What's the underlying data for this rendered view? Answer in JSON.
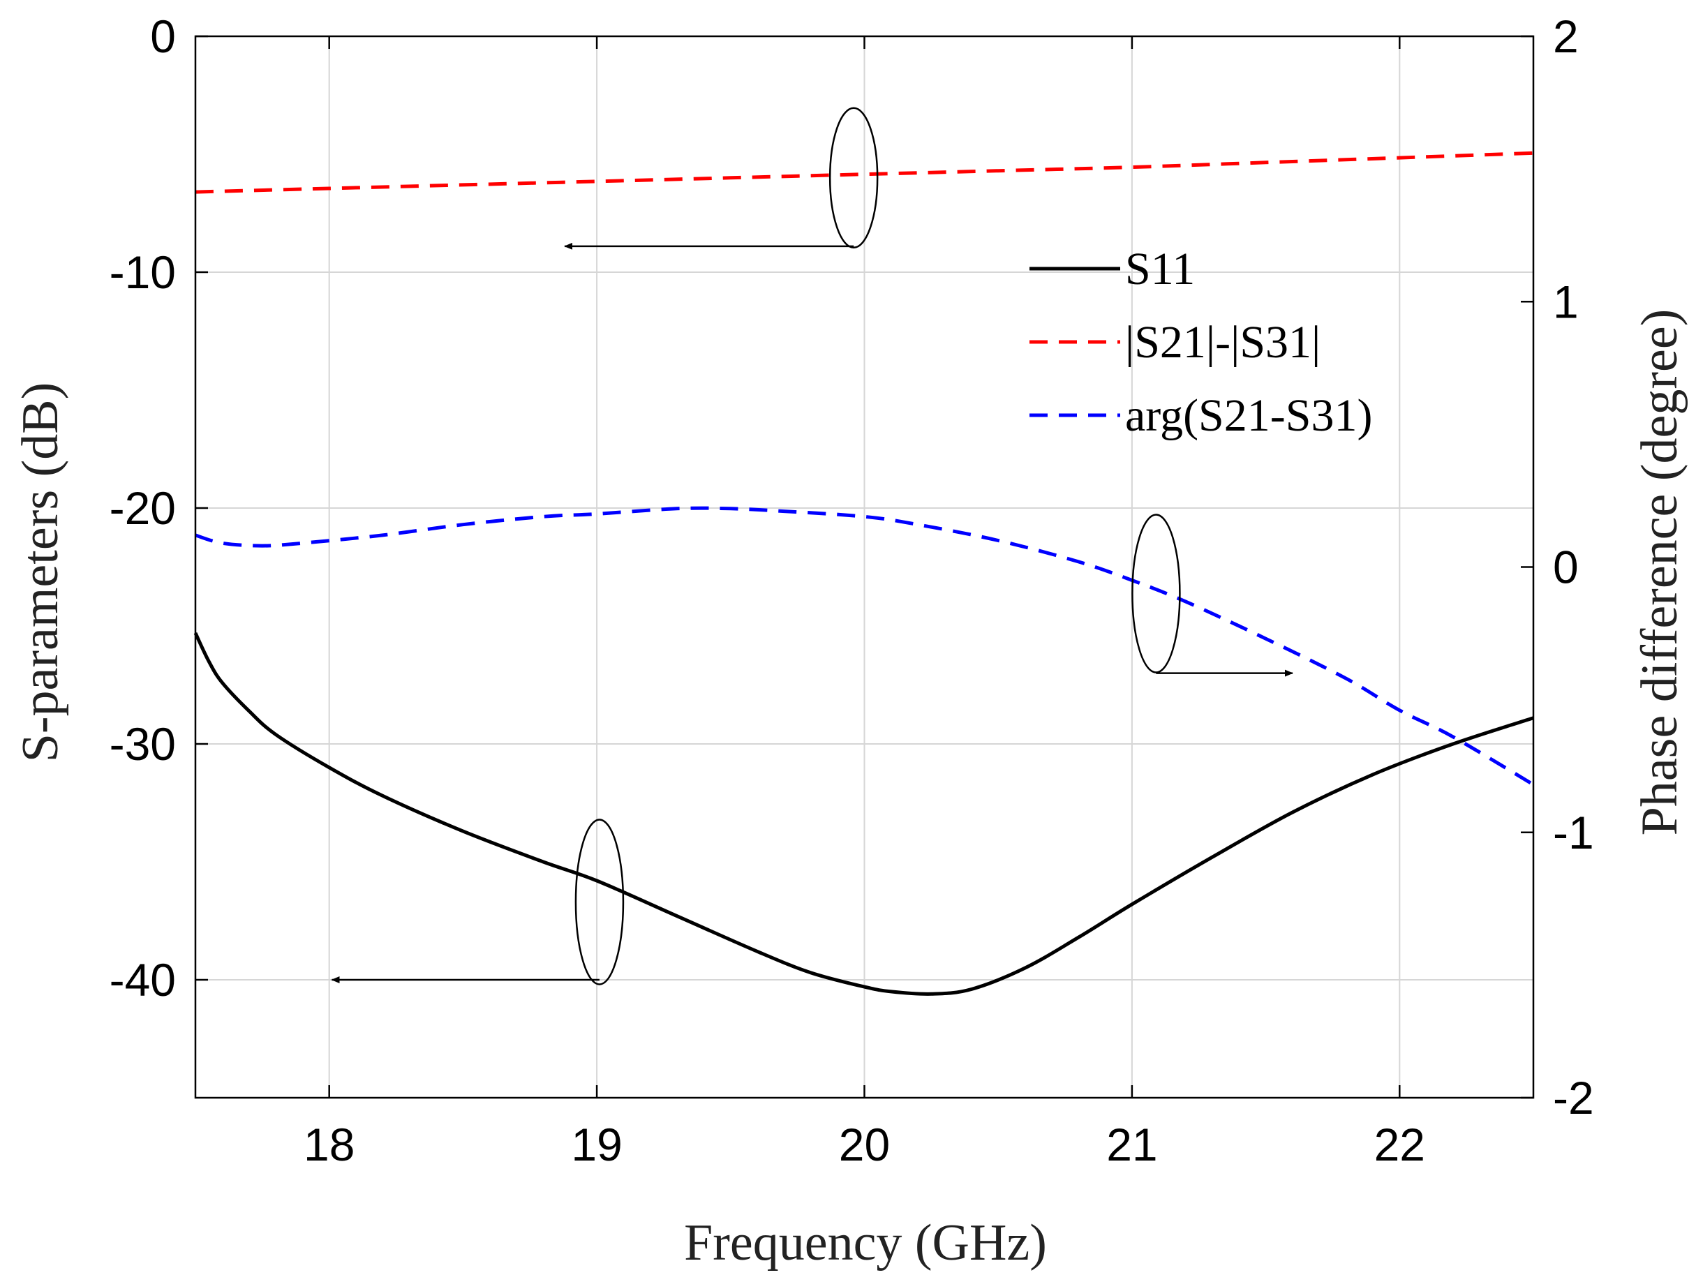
{
  "chart_data": {
    "type": "line",
    "xlabel": "Frequency (GHz)",
    "ylabel_left": "S-parameters (dB)",
    "ylabel_right": "Phase difference (degree)",
    "xlim": [
      17.5,
      22.5
    ],
    "ylim_left": [
      -45,
      0
    ],
    "ylim_right": [
      -2,
      2
    ],
    "grid": true,
    "x_ticks": [
      18,
      19,
      20,
      21,
      22
    ],
    "x_tick_labels": [
      "18",
      "19",
      "20",
      "21",
      "22"
    ],
    "y_left_ticks": [
      0,
      -10,
      -20,
      -30,
      -40
    ],
    "y_left_tick_labels": [
      "0",
      "-10",
      "-20",
      "-30",
      "-40"
    ],
    "y_right_ticks": [
      2,
      1,
      0,
      -1,
      -2
    ],
    "y_right_tick_labels": [
      "2",
      "1",
      "0",
      "-1",
      "-2"
    ],
    "legend_position": "top-right",
    "series": [
      {
        "name": "S11",
        "axis": "left",
        "color": "#000000",
        "style": "solid",
        "x": [
          17.5,
          17.55,
          17.6,
          17.7,
          17.8,
          18.0,
          18.2,
          18.5,
          18.8,
          19.0,
          19.3,
          19.6,
          19.8,
          20.0,
          20.1,
          20.25,
          20.4,
          20.6,
          20.8,
          21.0,
          21.3,
          21.6,
          21.9,
          22.2,
          22.5
        ],
        "y": [
          -25.3,
          -26.5,
          -27.4,
          -28.6,
          -29.6,
          -31.0,
          -32.2,
          -33.7,
          -35.0,
          -35.8,
          -37.3,
          -38.8,
          -39.7,
          -40.3,
          -40.5,
          -40.6,
          -40.4,
          -39.5,
          -38.2,
          -36.8,
          -34.8,
          -32.9,
          -31.3,
          -30.0,
          -28.9
        ]
      },
      {
        "name": "|S21|-|S31|",
        "axis": "left",
        "color": "#ff0000",
        "style": "dashed",
        "x": [
          17.5,
          18.0,
          18.5,
          19.0,
          19.5,
          20.0,
          20.5,
          21.0,
          21.5,
          22.0,
          22.5
        ],
        "y": [
          -6.6,
          -6.45,
          -6.3,
          -6.15,
          -6.0,
          -5.85,
          -5.7,
          -5.55,
          -5.35,
          -5.15,
          -4.95
        ]
      },
      {
        "name": "arg(S21-S31)",
        "axis": "right",
        "color": "#0000ff",
        "style": "dashed",
        "x": [
          17.5,
          17.6,
          17.75,
          17.9,
          18.2,
          18.5,
          18.8,
          19.0,
          19.3,
          19.5,
          19.7,
          20.0,
          20.2,
          20.5,
          20.8,
          21.0,
          21.2,
          21.5,
          21.8,
          22.0,
          22.2,
          22.5
        ],
        "y": [
          0.12,
          0.09,
          0.08,
          0.09,
          0.12,
          0.16,
          0.19,
          0.2,
          0.22,
          0.22,
          0.21,
          0.19,
          0.16,
          0.1,
          0.02,
          -0.05,
          -0.13,
          -0.27,
          -0.42,
          -0.54,
          -0.64,
          -0.82
        ]
      }
    ],
    "annotations": [
      {
        "name": "ellipse-s21-s31",
        "series": "|S21|-|S31|",
        "points_to": "left-axis"
      },
      {
        "name": "ellipse-arg",
        "series": "arg(S21-S31)",
        "points_to": "right-axis"
      },
      {
        "name": "ellipse-s11",
        "series": "S11",
        "points_to": "left-axis"
      }
    ]
  }
}
